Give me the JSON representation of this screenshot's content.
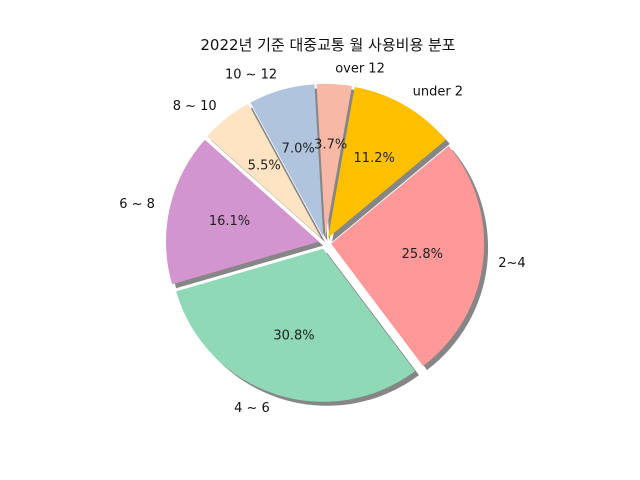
{
  "chart_data": {
    "type": "pie",
    "title": "2022년 기준 대중교통 월 사용비용 분포",
    "start_angle_deg": 80,
    "direction": "clockwise",
    "shadow": true,
    "explode": 0.04,
    "slices": [
      {
        "label": "under 2",
        "value": 11.2,
        "pct_label": "11.2%",
        "color": "#ffc000"
      },
      {
        "label": "2~4",
        "value": 25.8,
        "pct_label": "25.8%",
        "color": "#ff9999"
      },
      {
        "label": "4 ~ 6",
        "value": 30.8,
        "pct_label": "30.8%",
        "color": "#8fd9b6"
      },
      {
        "label": "6 ~ 8",
        "value": 16.1,
        "pct_label": "16.1%",
        "color": "#d395d0"
      },
      {
        "label": "8 ~ 10",
        "value": 5.5,
        "pct_label": "5.5%",
        "color": "#ffe4c4"
      },
      {
        "label": "10 ~ 12",
        "value": 7.0,
        "pct_label": "7.0%",
        "color": "#b0c4de"
      },
      {
        "label": "over 12",
        "value": 3.7,
        "pct_label": "3.7%",
        "color": "#f8b8a6"
      }
    ]
  }
}
